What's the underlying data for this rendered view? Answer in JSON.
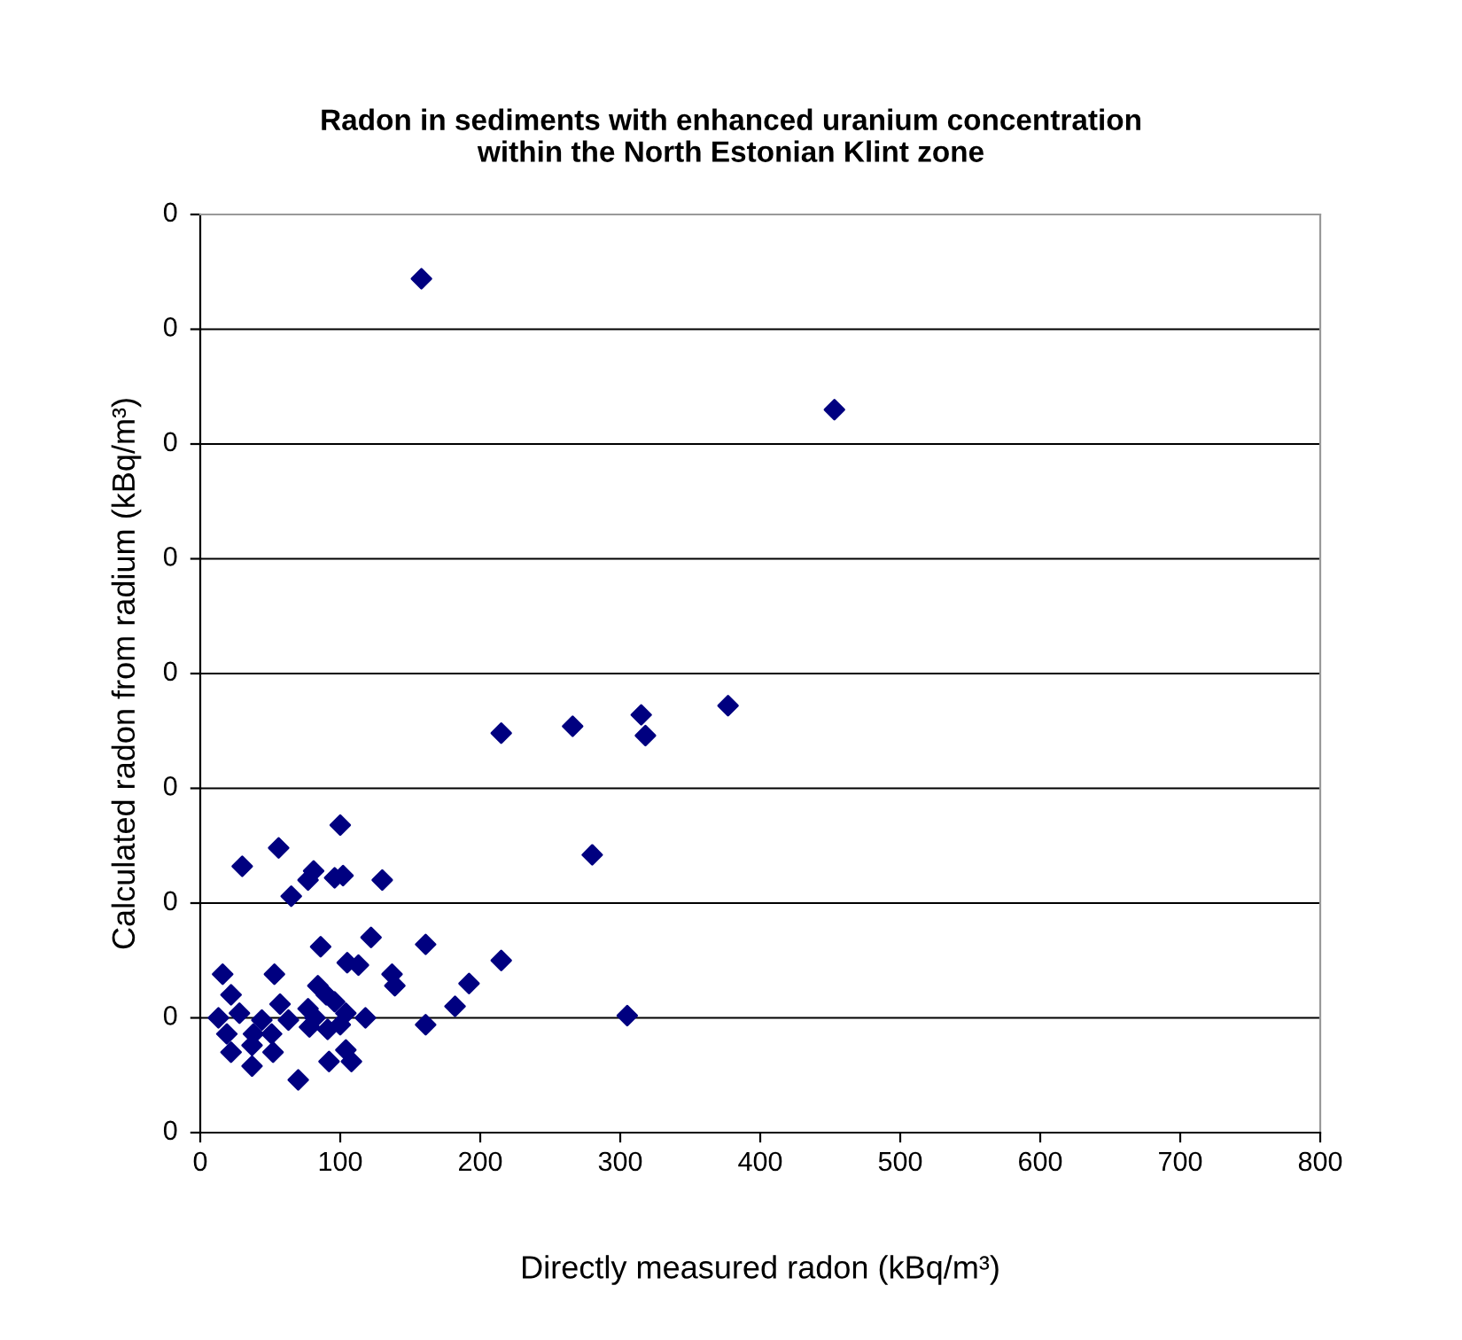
{
  "chart_data": {
    "type": "scatter",
    "title": "Radon in sediments with enhanced uranium concentration\nwithin the North Estonian Klint zone",
    "xlabel": "Directly measured radon (kBq/m³)",
    "ylabel": "Calculated radon from radium (kBq/m³)",
    "x": [
      158,
      453,
      215,
      266,
      315,
      318,
      377,
      280,
      100,
      56,
      30,
      81,
      77,
      96,
      102,
      130,
      65,
      122,
      161,
      86,
      215,
      105,
      113,
      16,
      53,
      137,
      139,
      192,
      22,
      84,
      90,
      96,
      57,
      77,
      28,
      182,
      44,
      13,
      63,
      82,
      104,
      100,
      118,
      161,
      305,
      19,
      38,
      51,
      91,
      22,
      37,
      52,
      37,
      92,
      104,
      108,
      70,
      78
    ],
    "series": [
      {
        "color": "#000080",
        "values": [
          0.372,
          0.315,
          0.174,
          0.177,
          0.182,
          0.173,
          0.186,
          0.121,
          0.134,
          0.124,
          0.116,
          0.114,
          0.11,
          0.111,
          0.112,
          0.11,
          0.103,
          0.085,
          0.082,
          0.081,
          0.075,
          0.074,
          0.073,
          0.069,
          0.069,
          0.069,
          0.064,
          0.065,
          0.06,
          0.064,
          0.06,
          0.057,
          0.056,
          0.054,
          0.052,
          0.055,
          0.049,
          0.05,
          0.049,
          0.05,
          0.052,
          0.047,
          0.05,
          0.047,
          0.051,
          0.043,
          0.043,
          0.043,
          0.045,
          0.035,
          0.038,
          0.035,
          0.029,
          0.031,
          0.036,
          0.031,
          0.023,
          0.046
        ]
      }
    ],
    "marker": "diamond",
    "legend": false,
    "xlim": [
      0,
      800
    ],
    "xticks": [
      0,
      100,
      200,
      300,
      400,
      500,
      600,
      700,
      800
    ],
    "ylim": [
      0,
      0.4
    ],
    "ref_lines": [
      {
        "axis": "y",
        "value": 0,
        "label": "0",
        "color": "#000000"
      },
      {
        "axis": "y",
        "value": 0.05,
        "label": "0",
        "color": "#000000"
      },
      {
        "axis": "y",
        "value": 0.1,
        "label": "0",
        "color": "#000000"
      },
      {
        "axis": "y",
        "value": 0.15,
        "label": "0",
        "color": "#000000"
      },
      {
        "axis": "y",
        "value": 0.2,
        "label": "0",
        "color": "#000000"
      },
      {
        "axis": "y",
        "value": 0.25,
        "label": "0",
        "color": "#000000"
      },
      {
        "axis": "y",
        "value": 0.3,
        "label": "0",
        "color": "#000000"
      },
      {
        "axis": "y",
        "value": 0.35,
        "label": "0",
        "color": "#000000"
      },
      {
        "axis": "y",
        "value": 0.4,
        "label": "0",
        "color": "#999999"
      }
    ]
  }
}
